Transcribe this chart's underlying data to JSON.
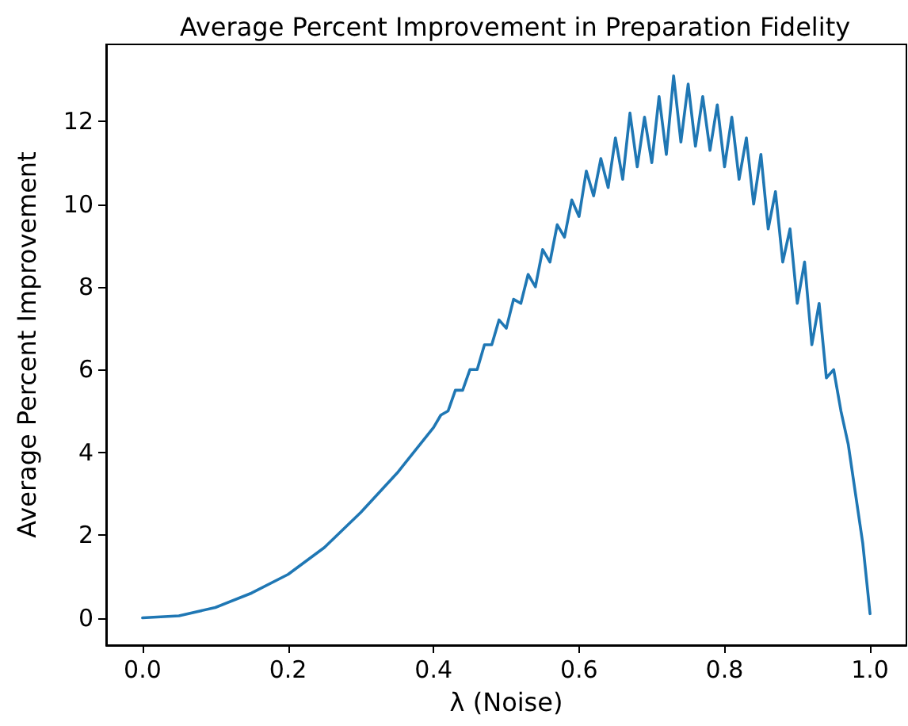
{
  "chart_data": {
    "type": "line",
    "title": "Average Percent Improvement in Preparation Fidelity",
    "xlabel": "λ (Noise)",
    "ylabel": "Average Percent Improvement",
    "xlim": [
      -0.05,
      1.05
    ],
    "xticks": [
      {
        "value": 0,
        "label": "0.0"
      },
      0.2,
      0.4,
      0.6,
      0.8,
      {
        "value": 1,
        "label": "1.0"
      }
    ],
    "ylim": [
      -0.66,
      13.86
    ],
    "yticks": [
      0,
      2,
      4,
      6,
      8,
      10,
      12
    ],
    "marker": "none",
    "line_style": "solid",
    "series": [
      {
        "color": "#1f77b4",
        "x": [
          0,
          0.05,
          0.1,
          0.15,
          0.2,
          0.25,
          0.3,
          0.35,
          0.4,
          0.41,
          0.42,
          0.43,
          0.44,
          0.45,
          0.46,
          0.47,
          0.48,
          0.49,
          0.5,
          0.51,
          0.52,
          0.53,
          0.54,
          0.55,
          0.56,
          0.57,
          0.58,
          0.59,
          0.6,
          0.61,
          0.62,
          0.63,
          0.64,
          0.65,
          0.66,
          0.67,
          0.68,
          0.69,
          0.7,
          0.71,
          0.72,
          0.73,
          0.74,
          0.75,
          0.76,
          0.77,
          0.78,
          0.79,
          0.8,
          0.81,
          0.82,
          0.83,
          0.84,
          0.85,
          0.86,
          0.87,
          0.88,
          0.89,
          0.9,
          0.91,
          0.92,
          0.93,
          0.94,
          0.95,
          0.96,
          0.97,
          0.98,
          0.99,
          1.0
        ],
        "values": [
          0,
          0.05,
          0.25,
          0.6,
          1.05,
          1.7,
          2.55,
          3.5,
          4.6,
          4.9,
          5.0,
          5.5,
          5.5,
          6.0,
          6.0,
          6.6,
          6.6,
          7.2,
          7.0,
          7.7,
          7.6,
          8.3,
          8.0,
          8.9,
          8.6,
          9.5,
          9.2,
          10.1,
          9.7,
          10.8,
          10.2,
          11.1,
          10.4,
          11.6,
          10.6,
          12.2,
          10.9,
          12.1,
          11.0,
          12.6,
          11.2,
          13.1,
          11.5,
          12.9,
          11.4,
          12.6,
          11.3,
          12.4,
          10.9,
          12.1,
          10.6,
          11.6,
          10.0,
          11.2,
          9.4,
          10.3,
          8.6,
          9.4,
          7.6,
          8.6,
          6.6,
          7.6,
          5.8,
          6.0,
          5.0,
          4.2,
          3.0,
          1.8,
          0.1
        ]
      }
    ]
  }
}
